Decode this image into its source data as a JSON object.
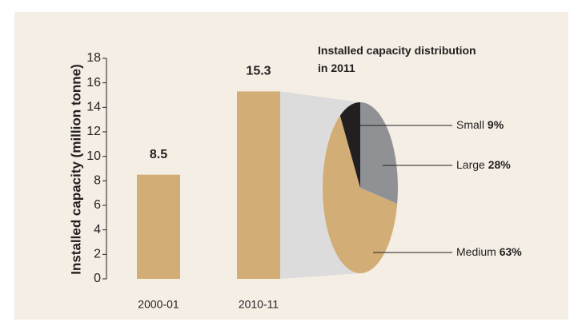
{
  "chart_data": [
    {
      "type": "bar",
      "ylabel": "Installed capacity (million tonne)",
      "categories": [
        "2000-01",
        "2010-11"
      ],
      "values": [
        8.5,
        15.3
      ],
      "color": "#d2ad76",
      "ylim": [
        0,
        18
      ],
      "yticks": [
        0,
        2,
        4,
        6,
        8,
        10,
        12,
        14,
        16,
        18
      ]
    },
    {
      "type": "pie",
      "title": "Installed capacity distribution in 2011",
      "categories": [
        "Small",
        "Large",
        "Medium"
      ],
      "values": [
        9,
        28,
        63
      ],
      "value_labels": [
        "9%",
        "28%",
        "63%"
      ],
      "colors": [
        "#231f20",
        "#8f9195",
        "#d2ad76"
      ]
    }
  ]
}
